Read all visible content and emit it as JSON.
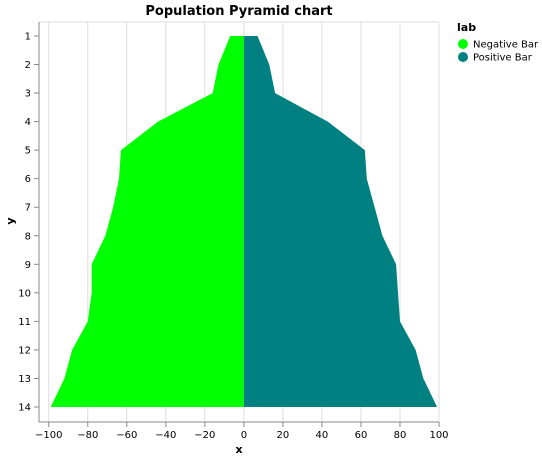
{
  "chart_data": {
    "type": "area",
    "title": "Population Pyramid chart",
    "xlabel": "x",
    "ylabel": "y",
    "xlim": [
      -105,
      100
    ],
    "x_ticks": [
      -100,
      -80,
      -60,
      -40,
      -20,
      0,
      20,
      40,
      60,
      80,
      100
    ],
    "x_tick_labels": [
      "−100",
      "−80",
      "−60",
      "−40",
      "−20",
      "0",
      "20",
      "40",
      "60",
      "80",
      "100"
    ],
    "categories": [
      1,
      2,
      3,
      4,
      5,
      6,
      7,
      8,
      9,
      10,
      11,
      12,
      13,
      14
    ],
    "grid": true,
    "legend": {
      "title": "lab",
      "position": "top-right",
      "entries": [
        "Negative Bar",
        "Positive Bar"
      ]
    },
    "series": [
      {
        "name": "Negative Bar",
        "color": "#00ff00",
        "values": [
          -7,
          -13,
          -16,
          -44,
          -63,
          -64,
          -67,
          -71,
          -78,
          -78,
          -80,
          -88,
          -92,
          -99
        ]
      },
      {
        "name": "Positive Bar",
        "color": "#008080",
        "values": [
          7,
          13,
          16,
          43,
          62,
          63,
          67,
          71,
          78,
          79,
          80,
          88,
          92,
          99
        ]
      }
    ]
  }
}
